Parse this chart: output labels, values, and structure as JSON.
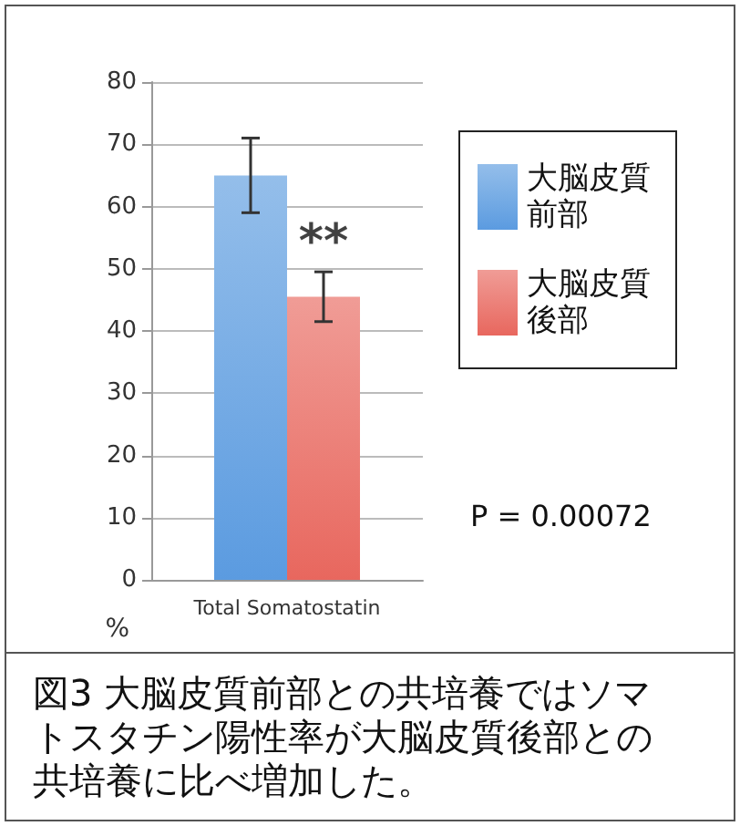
{
  "chart_data": {
    "type": "bar",
    "categories": [
      "Total Somatostatin"
    ],
    "series": [
      {
        "name": "大脳皮質前部",
        "color": "#5b9be0",
        "values": [
          65
        ],
        "errors": [
          [
            59,
            71
          ]
        ]
      },
      {
        "name": "大脳皮質後部",
        "color": "#e8675e",
        "values": [
          45.5
        ],
        "errors": [
          [
            41.5,
            49.5
          ]
        ]
      }
    ],
    "ylabel": "%",
    "ylim": [
      0,
      80
    ],
    "yticks": [
      0,
      10,
      20,
      30,
      40,
      50,
      60,
      70,
      80
    ],
    "grid": "y",
    "legend": "right",
    "annotations": [
      "**",
      "P = 0.00072",
      "図3 大脳皮質前部との共培養ではソマトスタチン陽性率が大脳皮質後部との共培養に比べ増加した。"
    ]
  }
}
